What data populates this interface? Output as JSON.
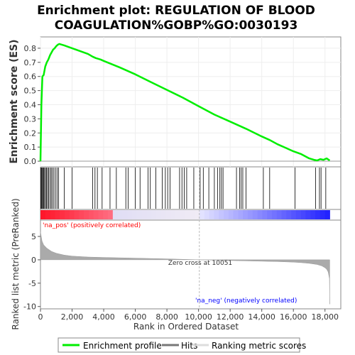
{
  "chart_data": {
    "type": "line",
    "title_line1": "Enrichment plot: REGULATION OF BLOOD",
    "title_line2": "COAGULATION%GOBP%GO:0030193",
    "es_ylabel": "Enrichment score (ES)",
    "metric_ylabel": "Ranked list metric (PreRanked)",
    "xlabel": "Rank in Ordered Dataset",
    "xlim": [
      0,
      19000
    ],
    "es_ylim": [
      -0.04,
      0.88
    ],
    "metric_ylim": [
      -10.5,
      8.5
    ],
    "x_ticks": [
      0,
      2000,
      4000,
      6000,
      8000,
      10000,
      12000,
      14000,
      16000,
      18000
    ],
    "x_tick_labels": [
      "0",
      "2,000",
      "4,000",
      "6,000",
      "8,000",
      "10,000",
      "12,000",
      "14,000",
      "16,000",
      "18,000"
    ],
    "es_ticks": [
      0.0,
      0.1,
      0.2,
      0.3,
      0.4,
      0.5,
      0.6,
      0.7,
      0.8
    ],
    "es_tick_labels": [
      "0.0",
      "0.1",
      "0.2",
      "0.3",
      "0.4",
      "0.5",
      "0.6",
      "0.7",
      "0.8"
    ],
    "metric_ticks": [
      -10,
      -5,
      0,
      5
    ],
    "metric_tick_labels": [
      "-10",
      "-5",
      "0",
      "5"
    ],
    "enrichment_profile": {
      "x": [
        0,
        60,
        120,
        200,
        300,
        400,
        500,
        600,
        700,
        800,
        900,
        1000,
        1100,
        1200,
        1500,
        2000,
        2500,
        3000,
        3300,
        3500,
        3800,
        4000,
        5000,
        6000,
        7000,
        8000,
        9000,
        10000,
        11000,
        12000,
        13000,
        14000,
        14500,
        15000,
        15500,
        16000,
        16500,
        17000,
        17300,
        17500,
        17700,
        17900,
        18100,
        18300
      ],
      "y": [
        0.0,
        0.4,
        0.6,
        0.61,
        0.67,
        0.7,
        0.72,
        0.75,
        0.77,
        0.79,
        0.8,
        0.815,
        0.825,
        0.83,
        0.82,
        0.8,
        0.78,
        0.76,
        0.74,
        0.73,
        0.72,
        0.71,
        0.665,
        0.615,
        0.56,
        0.505,
        0.45,
        0.39,
        0.33,
        0.28,
        0.23,
        0.175,
        0.15,
        0.12,
        0.095,
        0.07,
        0.05,
        0.02,
        0.01,
        0.005,
        0.015,
        0.01,
        0.02,
        0.005
      ]
    },
    "hits": [
      30,
      60,
      100,
      150,
      200,
      260,
      320,
      380,
      450,
      520,
      600,
      680,
      760,
      850,
      950,
      1050,
      1150,
      1500,
      2000,
      3300,
      3450,
      3600,
      3900,
      4400,
      4800,
      5400,
      5550,
      6000,
      6300,
      6800,
      6950,
      7300,
      7700,
      7900,
      8050,
      8200,
      8800,
      8950,
      9100,
      9250,
      9700,
      10100,
      10300,
      10650,
      11000,
      11200,
      11350,
      11450,
      11550,
      12400,
      12600,
      12700,
      12800,
      13000,
      14100,
      14500,
      16100,
      17400,
      17650,
      17750,
      18050
    ],
    "ranked_metric": {
      "x": [
        0,
        50,
        100,
        200,
        400,
        700,
        1000,
        1500,
        2000,
        3000,
        4000,
        6000,
        8000,
        10051,
        12000,
        14000,
        15000,
        16000,
        16500,
        17000,
        17500,
        17800,
        18000,
        18100,
        18200,
        18280,
        18300
      ],
      "y": [
        6.0,
        5.0,
        4.0,
        3.2,
        2.5,
        1.8,
        1.4,
        1.0,
        0.8,
        0.6,
        0.5,
        0.35,
        0.2,
        0.0,
        -0.15,
        -0.3,
        -0.38,
        -0.5,
        -0.6,
        -0.75,
        -1.0,
        -1.3,
        -1.7,
        -2.0,
        -2.6,
        -4.0,
        -9.5
      ]
    },
    "zero_cross_rank": 10051,
    "zero_cross_label": "Zero cross at 10051",
    "pos_label": "'na_pos' (positively correlated)",
    "neg_label": "'na_neg' (negatively correlated)",
    "legend": [
      "Enrichment profile",
      "Hits",
      "Ranking metric scores"
    ],
    "colors": {
      "profile": "#00ee00",
      "hits": "#000000",
      "metric_fill": "#aaaaaa",
      "pos_text": "#ff0000",
      "neg_text": "#0000ff",
      "zero_line": "#bbbbbb"
    }
  }
}
